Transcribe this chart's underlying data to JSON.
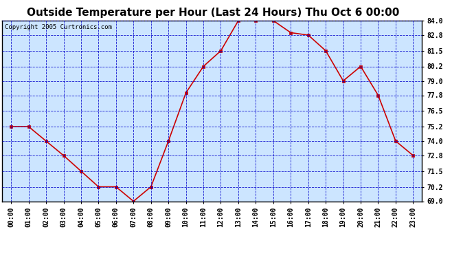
{
  "title": "Outside Temperature per Hour (Last 24 Hours) Thu Oct 6 00:00",
  "copyright": "Copyright 2005 Curtronics.com",
  "hours": [
    "00:00",
    "01:00",
    "02:00",
    "03:00",
    "04:00",
    "05:00",
    "06:00",
    "07:00",
    "08:00",
    "09:00",
    "10:00",
    "11:00",
    "12:00",
    "13:00",
    "14:00",
    "15:00",
    "16:00",
    "17:00",
    "18:00",
    "19:00",
    "20:00",
    "21:00",
    "22:00",
    "23:00"
  ],
  "values": [
    75.2,
    75.2,
    74.0,
    72.8,
    71.5,
    70.2,
    70.2,
    69.0,
    70.2,
    74.0,
    78.0,
    80.2,
    81.5,
    84.0,
    84.0,
    84.0,
    83.0,
    82.8,
    81.5,
    79.0,
    80.2,
    77.8,
    74.0,
    72.8
  ],
  "ylim_min": 69.0,
  "ylim_max": 84.0,
  "yticks": [
    69.0,
    70.2,
    71.5,
    72.8,
    74.0,
    75.2,
    76.5,
    77.8,
    79.0,
    80.2,
    81.5,
    82.8,
    84.0
  ],
  "line_color": "#cc0000",
  "marker_color": "#cc0000",
  "plot_bg": "#cce5ff",
  "outer_bg": "#ffffff",
  "grid_color": "#0000cc",
  "title_fontsize": 11,
  "tick_fontsize": 7,
  "copyright_fontsize": 6.5
}
